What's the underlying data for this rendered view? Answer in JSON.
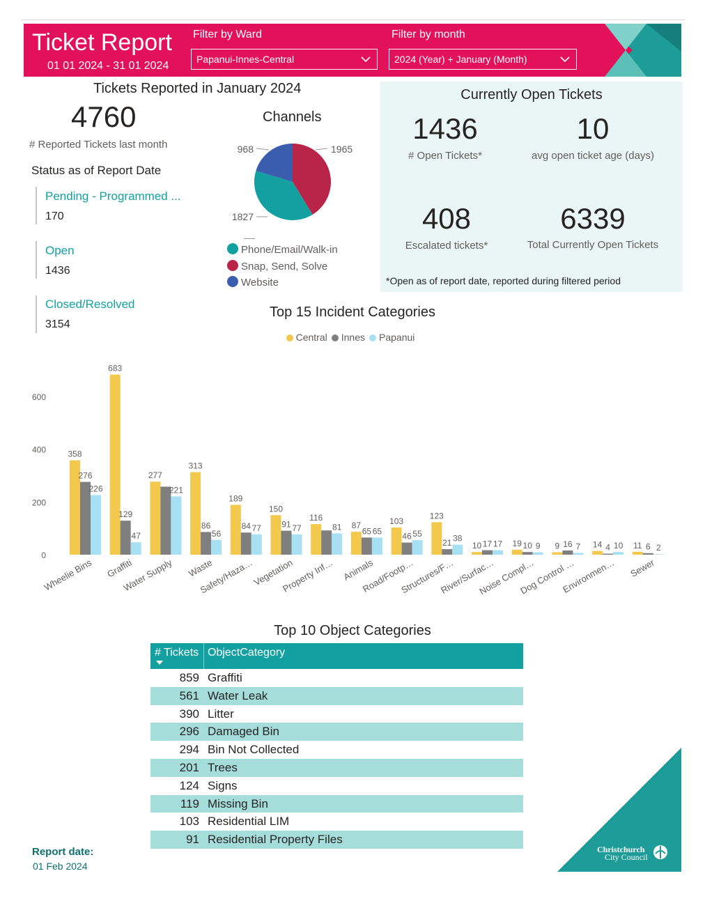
{
  "header": {
    "title": "Ticket Report",
    "date_range": "01 01 2024 - 31 01 2024",
    "ward_filter_label": "Filter by Ward",
    "ward_filter_value": "Papanui-Innes-Central",
    "month_filter_label": "Filter by month",
    "month_filter_value": "2024 (Year) + January (Month)",
    "colors": {
      "accent": "#e3105a",
      "teal": "#13a0a1"
    }
  },
  "reported": {
    "title": "Tickets Reported in January 2024",
    "count": "4760",
    "count_caption": "# Reported Tickets last month"
  },
  "status": {
    "title": "Status as of Report Date",
    "items": [
      {
        "label": "Pending - Programmed ...",
        "value": "170"
      },
      {
        "label": "Open",
        "value": "1436"
      },
      {
        "label": "Closed/Resolved",
        "value": "3154"
      }
    ]
  },
  "channels": {
    "title": "Channels",
    "slices": [
      {
        "label": "Phone/Email/Walk-in",
        "value": 1827,
        "value_label": "1827",
        "color": "#13a0a1"
      },
      {
        "label": "Snap, Send, Solve",
        "value": 1965,
        "value_label": "1965",
        "color": "#b92549"
      },
      {
        "label": "Website",
        "value": 968,
        "value_label": "968",
        "color": "#3a5dae"
      }
    ]
  },
  "open_tickets": {
    "title": "Currently Open Tickets",
    "open_count": "1436",
    "open_caption": "# Open Tickets*",
    "avg_age": "10",
    "avg_age_caption": "avg open ticket age (days)",
    "escalated": "408",
    "escalated_caption": "Escalated tickets*",
    "total_open": "6339",
    "total_open_caption": "Total Currently Open Tickets",
    "footnote": "*Open as of report date, reported during filtered period"
  },
  "chart_data": {
    "type": "bar",
    "title": "Top 15 Incident Categories",
    "categories": [
      "Wheelie Bins",
      "Graffiti",
      "Water Supply",
      "Waste",
      "Safety/Haza…",
      "Vegetation",
      "Property Inf…",
      "Animals",
      "Road/Footp…",
      "Structures/F…",
      "River/Surfac…",
      "Noise Compl…",
      "Dog Control …",
      "Environmen…",
      "Sewer"
    ],
    "series": [
      {
        "name": "Central",
        "color": "#f2c94c",
        "values": [
          358,
          683,
          277,
          313,
          189,
          150,
          116,
          87,
          103,
          123,
          10,
          19,
          9,
          14,
          11
        ]
      },
      {
        "name": "Innes",
        "color": "#807f7f",
        "values": [
          276,
          129,
          258,
          86,
          84,
          91,
          92,
          65,
          46,
          21,
          17,
          10,
          16,
          4,
          6
        ]
      },
      {
        "name": "Papanui",
        "color": "#a6e0f2",
        "values": [
          226,
          47,
          221,
          56,
          77,
          77,
          81,
          65,
          55,
          38,
          17,
          9,
          7,
          10,
          2
        ]
      }
    ],
    "value_labels": [
      [
        "358",
        "276",
        "226"
      ],
      [
        "683",
        "129",
        "47"
      ],
      [
        "277",
        "",
        "221"
      ],
      [
        "313",
        "86",
        "56"
      ],
      [
        "189",
        "84",
        "77"
      ],
      [
        "150",
        "91",
        "77"
      ],
      [
        "116",
        "",
        "81"
      ],
      [
        "87",
        "65",
        "65"
      ],
      [
        "103",
        "46",
        "55"
      ],
      [
        "123",
        "21",
        "38"
      ],
      [
        "10",
        "17",
        "17"
      ],
      [
        "19",
        "10",
        "9"
      ],
      [
        "9",
        "16",
        "7"
      ],
      [
        "14",
        "4",
        "10"
      ],
      [
        "11",
        "6",
        "2"
      ]
    ],
    "y_ticks": [
      0,
      200,
      400,
      600
    ],
    "y_tick_labels": [
      "0",
      "200",
      "400",
      "600"
    ],
    "ylim": [
      0,
      700
    ],
    "legend": "top-center",
    "grid": false
  },
  "object_table": {
    "title": "Top 10 Object Categories",
    "col_tickets": "# Tickets",
    "col_category": "ObjectCategory",
    "rows": [
      {
        "n": "859",
        "c": "Graffiti"
      },
      {
        "n": "561",
        "c": "Water Leak"
      },
      {
        "n": "390",
        "c": "Litter"
      },
      {
        "n": "296",
        "c": "Damaged Bin"
      },
      {
        "n": "294",
        "c": "Bin Not Collected"
      },
      {
        "n": "201",
        "c": "Trees"
      },
      {
        "n": "124",
        "c": "Signs"
      },
      {
        "n": "119",
        "c": "Missing Bin"
      },
      {
        "n": "103",
        "c": "Residential LIM"
      },
      {
        "n": "91",
        "c": "Residential Property Files"
      }
    ]
  },
  "report_date": {
    "label": "Report date:",
    "value": "01 Feb 2024"
  },
  "logo": {
    "line1": "Christchurch",
    "line2": "City Council"
  }
}
